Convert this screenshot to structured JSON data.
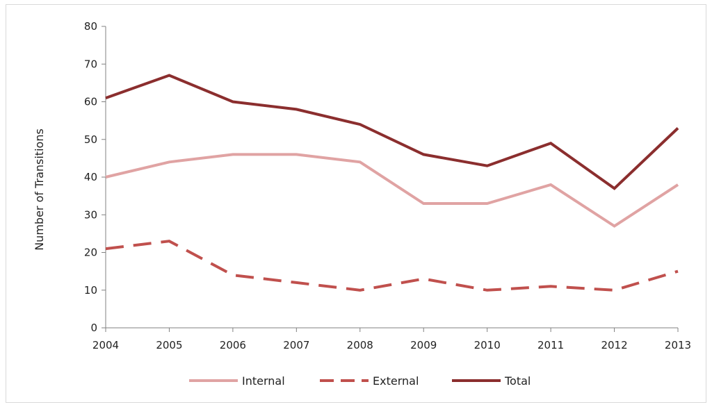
{
  "chart_data": {
    "type": "line",
    "title": "",
    "xlabel": "",
    "ylabel": "Number of Transitions",
    "x": [
      "2004",
      "2005",
      "2006",
      "2007",
      "2008",
      "2009",
      "2010",
      "2011",
      "2012",
      "2013"
    ],
    "ylim": [
      0,
      80
    ],
    "yticks": [
      0,
      10,
      20,
      30,
      40,
      50,
      60,
      70,
      80
    ],
    "grid": false,
    "legend_position": "bottom",
    "series": [
      {
        "name": "Internal",
        "values": [
          40,
          44,
          46,
          46,
          44,
          33,
          33,
          38,
          27,
          38
        ],
        "color": "#e0a3a3",
        "dash": "solid"
      },
      {
        "name": "External",
        "values": [
          21,
          23,
          14,
          12,
          10,
          13,
          10,
          11,
          10,
          15
        ],
        "color": "#c0504d",
        "dash": "dashed"
      },
      {
        "name": "Total",
        "values": [
          61,
          67,
          60,
          58,
          54,
          46,
          43,
          49,
          37,
          53
        ],
        "color": "#8b2e2e",
        "dash": "solid"
      }
    ]
  }
}
